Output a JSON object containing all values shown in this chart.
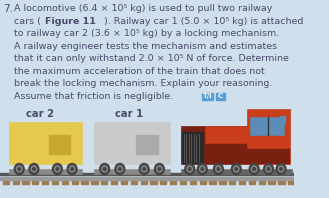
{
  "background_color": "#cfe0ec",
  "text_color": "#4a4a6a",
  "question_number": "7.",
  "lines": [
    "A locomotive (6.4 × 10⁵ kg) is used to pull two railway",
    "cars (Figure 11). Railway car 1 (5.0 × 10⁵ kg) is attached",
    "to railway car 2 (3.6 × 10⁵ kg) by a locking mechanism.",
    "A railway engineer tests the mechanism and estimates",
    "that it can only withstand 2.0 × 10⁵ N of force. Determine",
    "the maximum acceleration of the train that does not",
    "break the locking mechanism. Explain your reasoning.",
    "Assume that friction is negligible."
  ],
  "badge_ti_color": "#5a9fd4",
  "badge_c_color": "#5a9fd4",
  "car2_label": "car 2",
  "car1_label": "car 1",
  "car2_body_color": "#e5c84e",
  "car2_panel_color": "#c9a82e",
  "car1_body_color": "#c8cacb",
  "car1_panel_color": "#a8aaab",
  "loco_red": "#c93d1a",
  "loco_dark_red": "#7a2010",
  "loco_orange": "#d4581a",
  "loco_window_blue": "#5b8db8",
  "loco_dark": "#2a2a2a",
  "loco_gray": "#555555",
  "loco_mid": "#888888",
  "wheel_dark": "#444444",
  "wheel_rim": "#888888",
  "rail_top": "#999999",
  "rail_bottom": "#555555",
  "tie_color": "#9b7b50",
  "undercarriage_color": "#888888",
  "font_size": 6.8,
  "font_size_label": 7.2,
  "font_size_num": 7.5
}
